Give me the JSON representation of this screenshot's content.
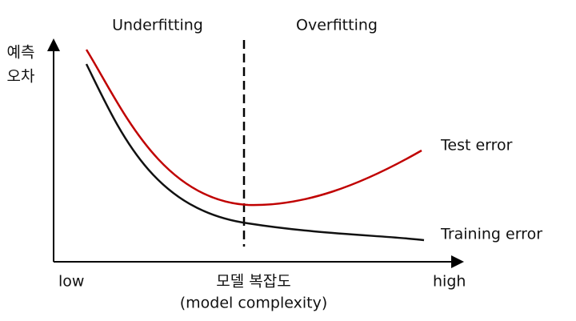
{
  "regions": {
    "left": "Underfitting",
    "right": "Overfitting"
  },
  "y_axis_label": [
    "예측",
    "오차"
  ],
  "x_axis": {
    "low": "low",
    "high": "high",
    "label": "모델 복잡도",
    "label_en": "(model complexity)"
  },
  "curves": {
    "test": "Test error",
    "training": "Training error"
  }
}
